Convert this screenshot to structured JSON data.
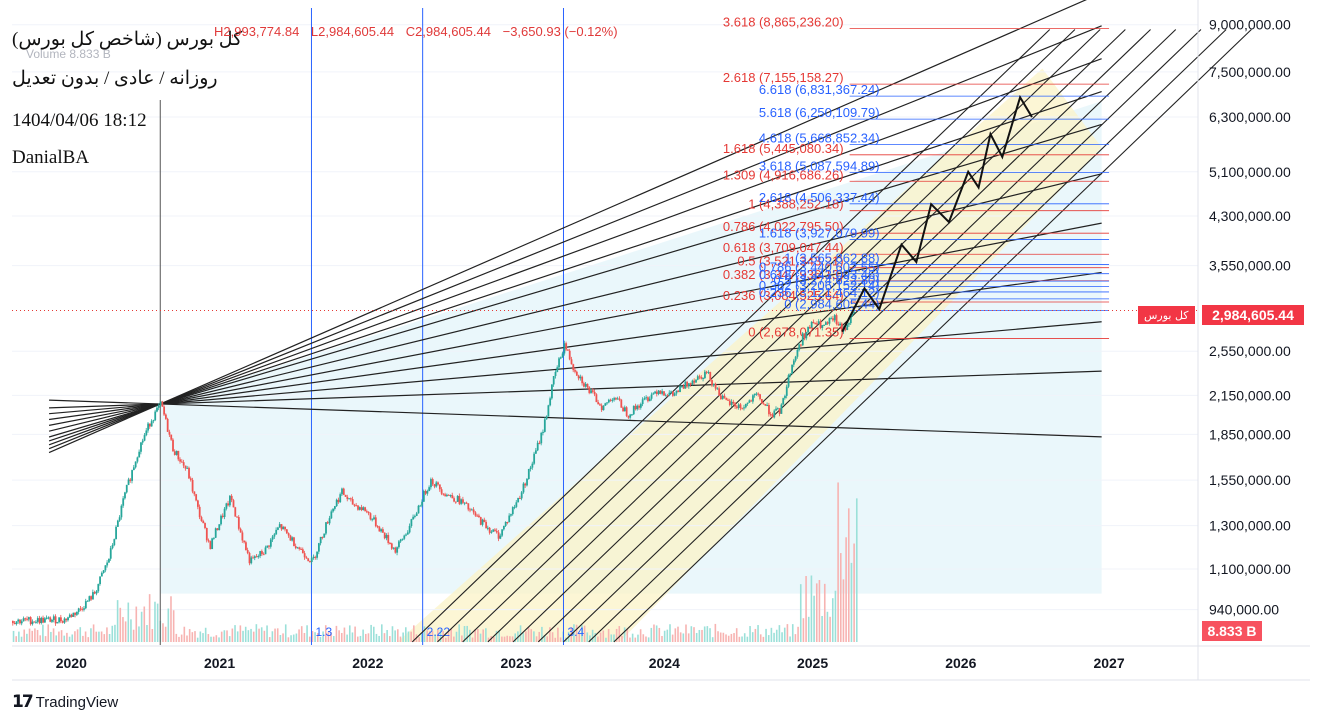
{
  "header": {
    "title": "کل بورس (شاخص کل بورس)",
    "subtitle": "روزانه / عادی / بدون تعدیل",
    "date": "1404/04/06 18:12",
    "author": "DanialBA",
    "ohlc": {
      "high": "H2,993,774.84",
      "low": "L2,984,605.44",
      "close": "C2,984,605.44",
      "change": "−3,650.93 (−0.12%)"
    },
    "volume_label": "Volume 8.833 B"
  },
  "price_tag": {
    "symbol": "کل بورس",
    "value": "2,984,605.44",
    "volume": "8.833 B"
  },
  "footer": {
    "brand": "TradingView"
  },
  "colors": {
    "up": "#26a69a",
    "down": "#ef5350",
    "fib_red": "#e53935",
    "fib_blue": "#2962ff",
    "channel_fill": "#d9f0f7",
    "channel2_fill": "#fbf3c7"
  },
  "chart_data": {
    "type": "candlestick",
    "title": "کل بورس (شاخص کل بورس)",
    "y_scale": "log",
    "ylim": [
      820000,
      9600000
    ],
    "xlim": [
      2019.6,
      2027.6
    ],
    "x_ticks": [
      "2020",
      "2021",
      "2022",
      "2023",
      "2024",
      "2025",
      "2026",
      "2027"
    ],
    "y_ticks": [
      {
        "value": 9000000,
        "label": "9,000,000.00"
      },
      {
        "value": 7500000,
        "label": "7,500,000.00"
      },
      {
        "value": 6300000,
        "label": "6,300,000.00"
      },
      {
        "value": 5100000,
        "label": "5,100,000.00"
      },
      {
        "value": 4300000,
        "label": "4,300,000.00"
      },
      {
        "value": 3550000,
        "label": "3,550,000.00"
      },
      {
        "value": 2550000,
        "label": "2,550,000.00"
      },
      {
        "value": 2150000,
        "label": "2,150,000.00"
      },
      {
        "value": 1850000,
        "label": "1,850,000.00"
      },
      {
        "value": 1550000,
        "label": "1,550,000.00"
      },
      {
        "value": 1300000,
        "label": "1,300,000.00"
      },
      {
        "value": 1100000,
        "label": "1,100,000.00"
      },
      {
        "value": 940000,
        "label": "940,000.00"
      }
    ],
    "price_path": [
      [
        2019.6,
        900000
      ],
      [
        2019.95,
        905000
      ],
      [
        2020.05,
        940000
      ],
      [
        2020.15,
        1000000
      ],
      [
        2020.25,
        1150000
      ],
      [
        2020.35,
        1450000
      ],
      [
        2020.45,
        1750000
      ],
      [
        2020.53,
        1950000
      ],
      [
        2020.6,
        2080000
      ],
      [
        2020.68,
        1750000
      ],
      [
        2020.78,
        1600000
      ],
      [
        2020.85,
        1380000
      ],
      [
        2020.93,
        1200000
      ],
      [
        2021.0,
        1330000
      ],
      [
        2021.07,
        1450000
      ],
      [
        2021.13,
        1280000
      ],
      [
        2021.2,
        1130000
      ],
      [
        2021.3,
        1180000
      ],
      [
        2021.4,
        1300000
      ],
      [
        2021.52,
        1200000
      ],
      [
        2021.62,
        1130000
      ],
      [
        2021.75,
        1380000
      ],
      [
        2021.82,
        1480000
      ],
      [
        2021.88,
        1420000
      ],
      [
        2021.98,
        1380000
      ],
      [
        2022.08,
        1280000
      ],
      [
        2022.18,
        1180000
      ],
      [
        2022.28,
        1300000
      ],
      [
        2022.38,
        1480000
      ],
      [
        2022.42,
        1550000
      ],
      [
        2022.52,
        1470000
      ],
      [
        2022.62,
        1430000
      ],
      [
        2022.72,
        1350000
      ],
      [
        2022.82,
        1280000
      ],
      [
        2022.88,
        1250000
      ],
      [
        2022.95,
        1350000
      ],
      [
        2023.03,
        1480000
      ],
      [
        2023.1,
        1650000
      ],
      [
        2023.18,
        1900000
      ],
      [
        2023.25,
        2300000
      ],
      [
        2023.32,
        2620000
      ],
      [
        2023.38,
        2400000
      ],
      [
        2023.48,
        2200000
      ],
      [
        2023.58,
        2050000
      ],
      [
        2023.65,
        2150000
      ],
      [
        2023.75,
        2000000
      ],
      [
        2023.85,
        2100000
      ],
      [
        2023.95,
        2200000
      ],
      [
        2024.05,
        2150000
      ],
      [
        2024.18,
        2280000
      ],
      [
        2024.28,
        2350000
      ],
      [
        2024.4,
        2100000
      ],
      [
        2024.52,
        2050000
      ],
      [
        2024.62,
        2150000
      ],
      [
        2024.72,
        2000000
      ],
      [
        2024.78,
        2030000
      ],
      [
        2024.85,
        2400000
      ],
      [
        2024.93,
        2700000
      ],
      [
        2025.0,
        2850000
      ],
      [
        2025.07,
        2800000
      ],
      [
        2025.14,
        2900000
      ],
      [
        2025.2,
        2750000
      ],
      [
        2025.25,
        2900000
      ],
      [
        2025.28,
        2984605
      ]
    ],
    "projected_path": [
      [
        2025.2,
        2750000
      ],
      [
        2025.35,
        3250000
      ],
      [
        2025.45,
        3000000
      ],
      [
        2025.6,
        3850000
      ],
      [
        2025.7,
        3600000
      ],
      [
        2025.8,
        4500000
      ],
      [
        2025.92,
        4200000
      ],
      [
        2026.05,
        5100000
      ],
      [
        2026.12,
        4800000
      ],
      [
        2026.2,
        5900000
      ],
      [
        2026.28,
        5400000
      ],
      [
        2026.4,
        6800000
      ],
      [
        2026.48,
        6300000
      ]
    ],
    "volume_note": "last bar 8.833 B",
    "fib_levels_red": [
      {
        "label": "0 (2,678,071.35)",
        "value": 2678071
      },
      {
        "label": "0.236 (3,084,525.64)",
        "value": 3084525
      },
      {
        "label": "0.382 (3,347,936.13)",
        "value": 3347936
      },
      {
        "label": "0.5 (3,521,343.21)",
        "value": 3521343
      },
      {
        "label": "0.618 (3,709,047.44)",
        "value": 3709047
      },
      {
        "label": "0.786 (4,022,795.50)",
        "value": 4022795
      },
      {
        "label": "1 (4,388,252.18)",
        "value": 4388252
      },
      {
        "label": "1.309 (4,916,686.26)",
        "value": 4916686
      },
      {
        "label": "1.618 (5,445,080.34)",
        "value": 5445080
      },
      {
        "label": "2.618 (7,155,158.27)",
        "value": 7155158
      },
      {
        "label": "3.618 (8,865,236.20)",
        "value": 8865236
      }
    ],
    "fib_levels_blue": [
      {
        "label": "0 (2,984,605.44)",
        "value": 2984605
      },
      {
        "label": "0.236 (3,121,464.12)",
        "value": 3121464
      },
      {
        "label": "0.382 (3,206,152.14)",
        "value": 3206152
      },
      {
        "label": "0.5 (3,274,622.80)",
        "value": 3274622
      },
      {
        "label": "0.618 (3,343,093.46)",
        "value": 3343093
      },
      {
        "label": "0.786 (3,440,602.55)",
        "value": 3440602
      },
      {
        "label": "1 (3,565,862.88)",
        "value": 3565862
      },
      {
        "label": "1.618 (3,927,079.99)",
        "value": 3927079
      },
      {
        "label": "2.618 (4,506,337.44)",
        "value": 4506337
      },
      {
        "label": "3.618 (5,087,594.89)",
        "value": 5087594
      },
      {
        "label": "4.618 (5,668,852.34)",
        "value": 5668852
      },
      {
        "label": "5.618 (6,250,109.79)",
        "value": 6250109
      },
      {
        "label": "6.618 (6,831,367.24)",
        "value": 6831367
      }
    ],
    "vertical_markers": [
      {
        "x": 2021.62,
        "label": "1.3"
      },
      {
        "x": 2022.37,
        "label": "2.22"
      },
      {
        "x": 2023.32,
        "label": "3.4"
      }
    ]
  }
}
